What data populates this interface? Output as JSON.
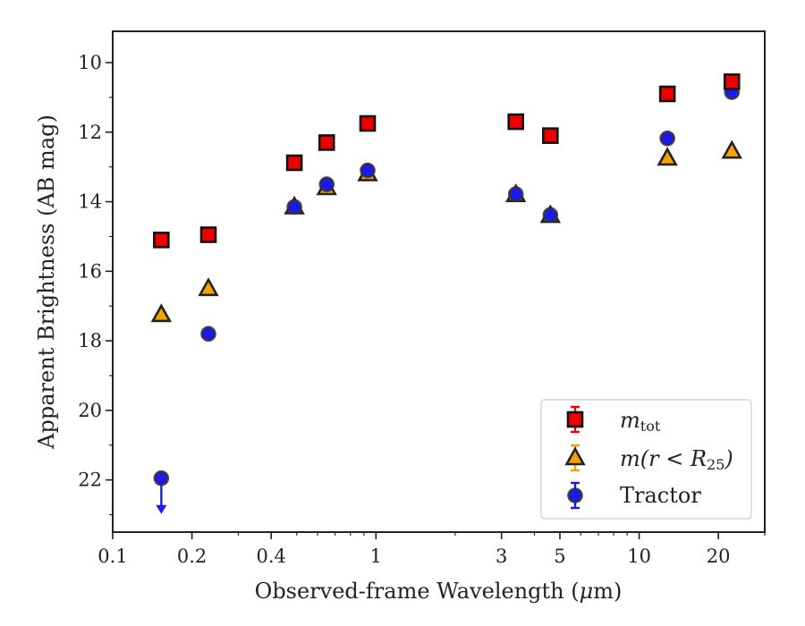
{
  "chart_data": {
    "type": "scatter",
    "xlabel_prefix": "Observed-frame Wavelength (",
    "xlabel_unit_greek": "μ",
    "xlabel_suffix": "m)",
    "ylabel": "Apparent Brightness (AB mag)",
    "xscale": "log",
    "xlim": [
      0.1,
      30
    ],
    "ylim": [
      23.5,
      9.1
    ],
    "y_inverted": true,
    "x_ticks": [
      0.1,
      0.2,
      0.4,
      1,
      3,
      5,
      10,
      20
    ],
    "x_tick_labels": [
      "0.1",
      "0.2",
      "0.4",
      "1",
      "3",
      "5",
      "10",
      "20"
    ],
    "y_ticks": [
      10,
      12,
      14,
      16,
      18,
      20,
      22
    ],
    "y_tick_labels": [
      "10",
      "12",
      "14",
      "16",
      "18",
      "20",
      "22"
    ],
    "legend_position": "lower-right",
    "grid": false,
    "series": [
      {
        "name": "m_tot",
        "legend_base": "m",
        "legend_sub": "tot",
        "marker": "square",
        "color": "#ee0000",
        "points": [
          {
            "x": 0.153,
            "y": 15.1
          },
          {
            "x": 0.231,
            "y": 14.95
          },
          {
            "x": 0.49,
            "y": 12.88
          },
          {
            "x": 0.65,
            "y": 12.3
          },
          {
            "x": 0.93,
            "y": 11.75
          },
          {
            "x": 3.4,
            "y": 11.7
          },
          {
            "x": 4.6,
            "y": 12.1
          },
          {
            "x": 12.8,
            "y": 10.9
          },
          {
            "x": 22.5,
            "y": 10.55
          }
        ]
      },
      {
        "name": "m(r < R25)",
        "legend_base": "m(r < R",
        "legend_sub": "25",
        "legend_tail": ")",
        "marker": "triangle",
        "color": "#f5a300",
        "points": [
          {
            "x": 0.153,
            "y": 17.25
          },
          {
            "x": 0.231,
            "y": 16.5
          },
          {
            "x": 0.49,
            "y": 14.15
          },
          {
            "x": 0.65,
            "y": 13.6
          },
          {
            "x": 0.93,
            "y": 13.2
          },
          {
            "x": 3.4,
            "y": 13.8
          },
          {
            "x": 4.6,
            "y": 14.4
          },
          {
            "x": 12.8,
            "y": 12.75
          },
          {
            "x": 22.5,
            "y": 12.55
          }
        ]
      },
      {
        "name": "Tractor",
        "marker": "circle",
        "color": "#1a1aee",
        "points": [
          {
            "x": 0.153,
            "y": 21.95,
            "upper_limit": true
          },
          {
            "x": 0.231,
            "y": 17.8
          },
          {
            "x": 0.49,
            "y": 14.15
          },
          {
            "x": 0.65,
            "y": 13.5
          },
          {
            "x": 0.93,
            "y": 13.1
          },
          {
            "x": 3.4,
            "y": 13.78
          },
          {
            "x": 4.6,
            "y": 14.38
          },
          {
            "x": 12.8,
            "y": 12.18
          },
          {
            "x": 22.5,
            "y": 10.85
          }
        ]
      }
    ]
  }
}
